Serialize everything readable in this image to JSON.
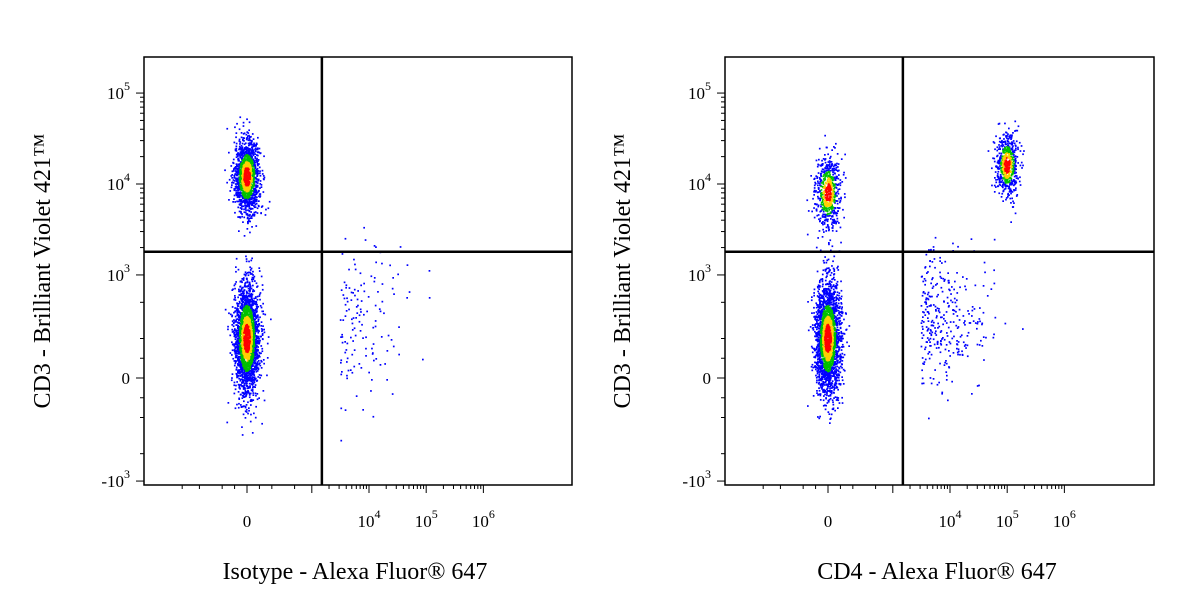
{
  "chart_data": [
    {
      "type": "scatter",
      "subtype": "flow-cytometry-density-dot-plot",
      "xlabel": "Isotype - Alexa Fluor® 647",
      "ylabel": "CD3 - Brilliant Violet 421™",
      "xscale": "biexponential",
      "yscale": "biexponential",
      "x_ticks": [
        {
          "base": "0",
          "exp": ""
        },
        {
          "base": "10",
          "exp": "4"
        },
        {
          "base": "10",
          "exp": "5"
        },
        {
          "base": "10",
          "exp": "6"
        }
      ],
      "y_ticks": [
        {
          "base": "10",
          "exp": "5"
        },
        {
          "base": "10",
          "exp": "4"
        },
        {
          "base": "10",
          "exp": "3"
        },
        {
          "base": "0",
          "exp": ""
        },
        {
          "base": "-10",
          "exp": "3"
        }
      ],
      "quadrant_gate": {
        "x": 1500,
        "y": 1800
      },
      "populations": [
        {
          "quadrant": "upper-left",
          "x_center": 0,
          "y_center": 12000,
          "count": 1500
        },
        {
          "quadrant": "lower-left",
          "x_center": 0,
          "y_center": 200,
          "count": 2400
        },
        {
          "quadrant": "lower-right",
          "x_center": 5000,
          "y_center": 300,
          "count": 140
        }
      ],
      "colors": {
        "low": "#0000ff",
        "mid": "#00c000",
        "high_mid": "#ffd000",
        "high": "#ff0000"
      },
      "grid": false,
      "legend": "none"
    },
    {
      "type": "scatter",
      "subtype": "flow-cytometry-density-dot-plot",
      "xlabel": "CD4 - Alexa Fluor® 647",
      "ylabel": "CD3 - Brilliant Violet 421™",
      "xscale": "biexponential",
      "yscale": "biexponential",
      "x_ticks": [
        {
          "base": "0",
          "exp": ""
        },
        {
          "base": "10",
          "exp": "4"
        },
        {
          "base": "10",
          "exp": "5"
        },
        {
          "base": "10",
          "exp": "6"
        }
      ],
      "y_ticks": [
        {
          "base": "10",
          "exp": "5"
        },
        {
          "base": "10",
          "exp": "4"
        },
        {
          "base": "10",
          "exp": "3"
        },
        {
          "base": "0",
          "exp": ""
        },
        {
          "base": "-10",
          "exp": "3"
        }
      ],
      "quadrant_gate": {
        "x": 1500,
        "y": 1800
      },
      "populations": [
        {
          "quadrant": "upper-left",
          "x_center": 0,
          "y_center": 8000,
          "count": 650
        },
        {
          "quadrant": "upper-right",
          "x_center": 100000,
          "y_center": 16000,
          "count": 650
        },
        {
          "quadrant": "lower-left",
          "x_center": 0,
          "y_center": 200,
          "count": 2400
        },
        {
          "quadrant": "lower-right",
          "x_center": 5000,
          "y_center": 300,
          "count": 320
        }
      ],
      "colors": {
        "low": "#0000ff",
        "mid": "#00c000",
        "high_mid": "#ffd000",
        "high": "#ff0000"
      },
      "grid": false,
      "legend": "none"
    }
  ]
}
